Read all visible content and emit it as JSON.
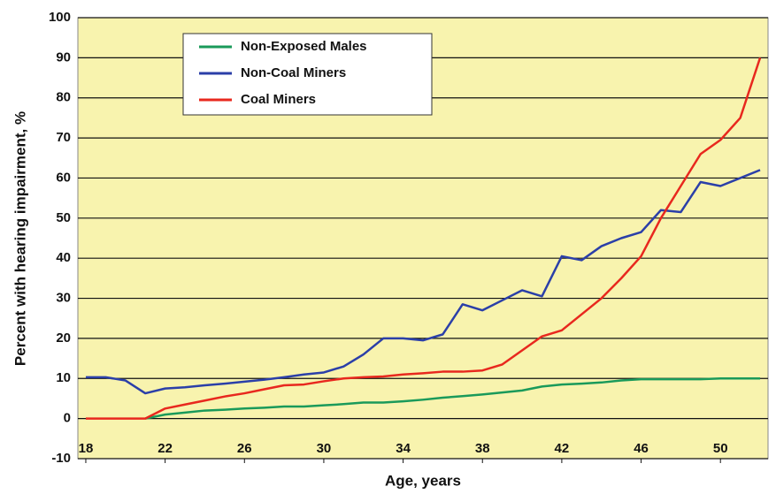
{
  "chart_data": {
    "type": "line",
    "x_label": "Age, years",
    "y_label": "Percent with hearing impairment, %",
    "x": [
      18,
      19,
      20,
      21,
      22,
      23,
      24,
      25,
      26,
      27,
      28,
      29,
      30,
      31,
      32,
      33,
      34,
      35,
      36,
      37,
      38,
      39,
      40,
      41,
      42,
      43,
      44,
      45,
      46,
      47,
      48,
      49,
      50,
      51,
      52
    ],
    "series": [
      {
        "name": "Non-Exposed Males",
        "color": "#1a9a5a",
        "values": [
          null,
          null,
          null,
          0,
          1,
          1.5,
          2,
          2.2,
          2.5,
          2.7,
          3,
          3,
          3.3,
          3.6,
          4,
          4,
          4.3,
          4.7,
          5.2,
          5.6,
          6,
          6.5,
          7,
          8,
          8.5,
          8.7,
          9,
          9.5,
          9.8,
          9.8,
          9.8,
          9.8,
          10,
          10,
          10
        ]
      },
      {
        "name": "Non-Coal Miners",
        "color": "#2b3fa8",
        "values": [
          10.3,
          10.3,
          9.5,
          6.3,
          7.5,
          7.8,
          8.3,
          8.7,
          9.2,
          9.7,
          10.3,
          11,
          11.5,
          13,
          16,
          20,
          20,
          19.5,
          21,
          28.5,
          27,
          29.5,
          32,
          30.5,
          40.5,
          39.5,
          43,
          45,
          46.5,
          52,
          51.5,
          59,
          58,
          60,
          62
        ]
      },
      {
        "name": "Coal Miners",
        "color": "#e8281e",
        "values": [
          0,
          0,
          0,
          0,
          2.5,
          3.5,
          4.5,
          5.5,
          6.3,
          7.3,
          8.3,
          8.5,
          9.3,
          10,
          10.3,
          10.5,
          11,
          11.3,
          11.7,
          11.7,
          12,
          13.5,
          17,
          20.5,
          22,
          26,
          30,
          35,
          40.5,
          50,
          58,
          66,
          69.5,
          75,
          90
        ]
      }
    ],
    "xlim": [
      17.6,
      52.4
    ],
    "xticks": [
      18,
      22,
      26,
      30,
      34,
      38,
      42,
      46,
      50
    ],
    "ylim": [
      -10,
      100
    ],
    "yticks": [
      -10,
      0,
      10,
      20,
      30,
      40,
      50,
      60,
      70,
      80,
      90,
      100
    ],
    "grid": true,
    "legend": "upper left"
  }
}
